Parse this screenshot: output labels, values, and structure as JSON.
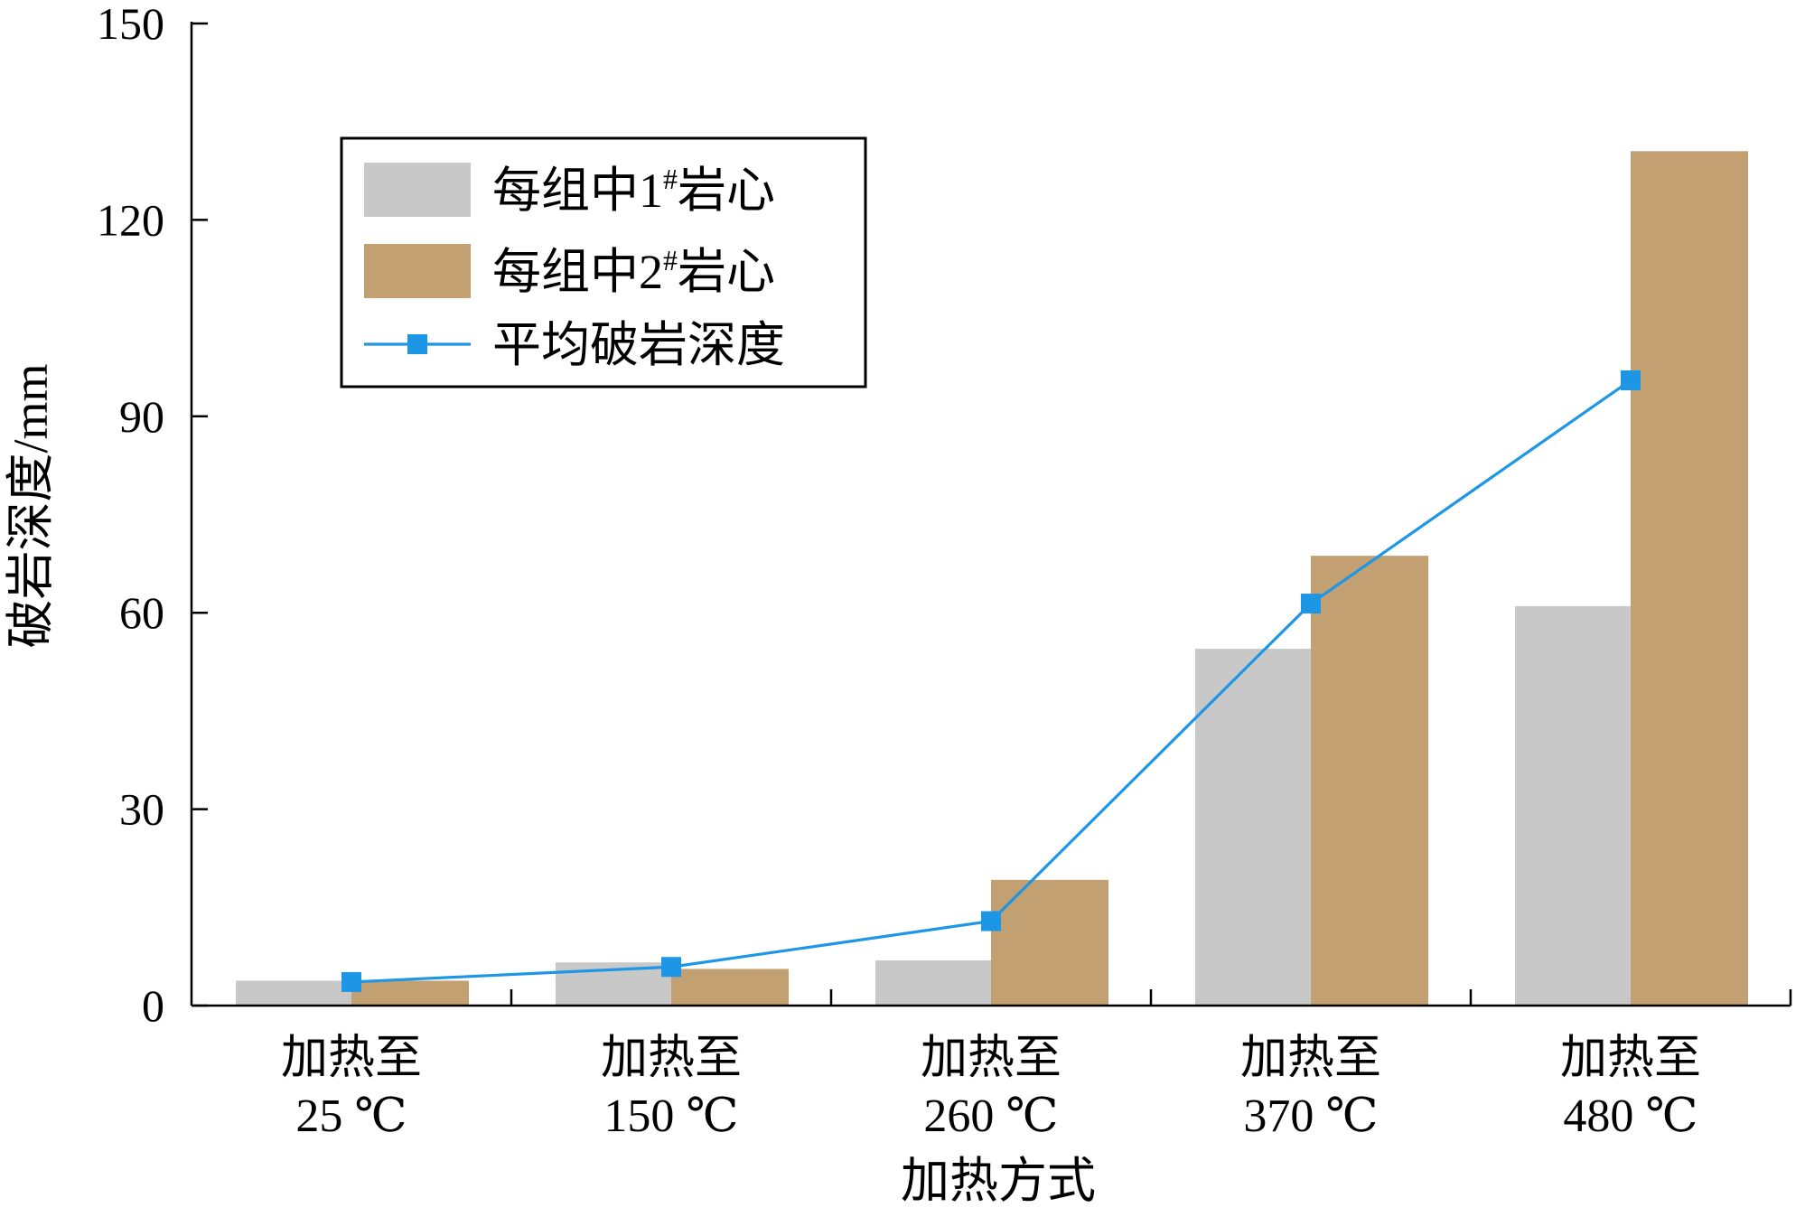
{
  "chart_data": {
    "type": "bar",
    "xlabel": "加热方式",
    "ylabel": "破岩深度/mm",
    "ylim": [
      0,
      150
    ],
    "yticks": [
      0,
      30,
      60,
      90,
      120,
      150
    ],
    "grid": false,
    "legend_position": "top-left",
    "categories": [
      {
        "line1": "加热至",
        "line2": "25 ℃"
      },
      {
        "line1": "加热至",
        "line2": "150 ℃"
      },
      {
        "line1": "加热至",
        "line2": "260 ℃"
      },
      {
        "line1": "加热至",
        "line2": "370 ℃"
      },
      {
        "line1": "加热至",
        "line2": "480 ℃"
      }
    ],
    "series": [
      {
        "name": "每组中1#岩心",
        "name_main": "每组中1",
        "name_sup": "#",
        "name_tail": "岩心",
        "kind": "bar",
        "color": "#c8c8c8",
        "values": [
          3.8,
          6.6,
          6.9,
          54.5,
          61.0
        ]
      },
      {
        "name": "每组中2#岩心",
        "name_main": "每组中2",
        "name_sup": "#",
        "name_tail": "岩心",
        "kind": "bar",
        "color": "#c2a072",
        "values": [
          3.8,
          5.6,
          19.2,
          68.7,
          130.5
        ]
      },
      {
        "name": "平均破岩深度",
        "kind": "line",
        "color": "#1e96e6",
        "marker": "square",
        "values": [
          3.6,
          5.9,
          12.9,
          61.4,
          95.5
        ]
      }
    ]
  }
}
